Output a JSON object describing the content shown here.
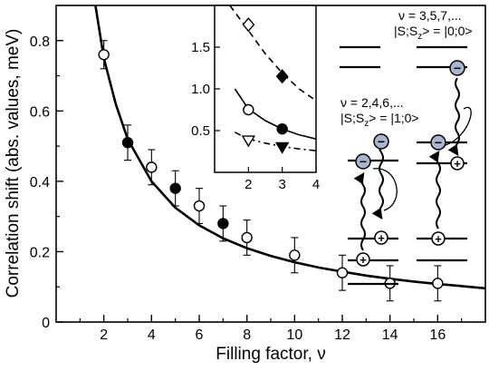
{
  "chart_data": [
    {
      "type": "scatter",
      "xlabel": "Filling factor, ν",
      "ylabel": "Correlation shift (abs. values, meV)",
      "xlim": [
        0,
        18
      ],
      "ylim": [
        0,
        0.9
      ],
      "x_ticks": [
        "2",
        "4",
        "6",
        "8",
        "10",
        "12",
        "14",
        "16"
      ],
      "y_ticks": [
        "0",
        "0.2",
        "0.4",
        "0.6",
        "0.8"
      ],
      "grid": false,
      "series": [
        {
          "marker": "open-circle",
          "points": [
            {
              "x": 2,
              "y": 0.76,
              "err": 0.04
            },
            {
              "x": 4,
              "y": 0.44,
              "err": 0.05
            },
            {
              "x": 6,
              "y": 0.33,
              "err": 0.05
            },
            {
              "x": 8,
              "y": 0.24,
              "err": 0.05
            },
            {
              "x": 10,
              "y": 0.19,
              "err": 0.05
            },
            {
              "x": 12,
              "y": 0.14,
              "err": 0.05
            },
            {
              "x": 14,
              "y": 0.11,
              "err": 0.05
            },
            {
              "x": 16,
              "y": 0.11,
              "err": 0.05
            }
          ]
        },
        {
          "marker": "filled-circle",
          "points": [
            {
              "x": 3,
              "y": 0.51,
              "err": 0.05
            },
            {
              "x": 5,
              "y": 0.38,
              "err": 0.05
            },
            {
              "x": 7,
              "y": 0.28,
              "err": 0.05
            }
          ]
        }
      ],
      "fit_curve": {
        "style": "solid",
        "points": [
          [
            1.65,
            0.9
          ],
          [
            2,
            0.75
          ],
          [
            2.5,
            0.62
          ],
          [
            3,
            0.52
          ],
          [
            4,
            0.4
          ],
          [
            5,
            0.325
          ],
          [
            6,
            0.275
          ],
          [
            7,
            0.238
          ],
          [
            8,
            0.21
          ],
          [
            9,
            0.188
          ],
          [
            10,
            0.17
          ],
          [
            11,
            0.155
          ],
          [
            12,
            0.143
          ],
          [
            13,
            0.132
          ],
          [
            14,
            0.123
          ],
          [
            15,
            0.115
          ],
          [
            16,
            0.108
          ],
          [
            17,
            0.102
          ],
          [
            18,
            0.096
          ]
        ]
      }
    },
    {
      "type": "scatter",
      "inset": true,
      "xlim": [
        1,
        4
      ],
      "ylim": [
        0,
        2
      ],
      "x_ticks": [
        "2",
        "3",
        "4"
      ],
      "y_ticks": [
        "0.5",
        "1.0",
        "1.5"
      ],
      "series": [
        {
          "marker": "open-diamond",
          "points": [
            {
              "x": 2,
              "y": 1.77
            }
          ]
        },
        {
          "marker": "filled-diamond",
          "points": [
            {
              "x": 3,
              "y": 1.15
            }
          ]
        },
        {
          "marker": "open-circle",
          "points": [
            {
              "x": 2,
              "y": 0.75
            }
          ]
        },
        {
          "marker": "filled-circle",
          "points": [
            {
              "x": 3,
              "y": 0.52
            }
          ]
        },
        {
          "marker": "open-triangle-down",
          "points": [
            {
              "x": 2,
              "y": 0.38
            }
          ]
        },
        {
          "marker": "filled-triangle-down",
          "points": [
            {
              "x": 3,
              "y": 0.3
            }
          ]
        }
      ],
      "curves": [
        {
          "style": "dashed",
          "points": [
            [
              1.45,
              2.0
            ],
            [
              2,
              1.7
            ],
            [
              2.5,
              1.42
            ],
            [
              3,
              1.19
            ],
            [
              3.5,
              1.0
            ],
            [
              4,
              0.86
            ]
          ]
        },
        {
          "style": "solid",
          "points": [
            [
              1.6,
              1.0
            ],
            [
              2,
              0.76
            ],
            [
              2.5,
              0.62
            ],
            [
              3,
              0.52
            ],
            [
              3.5,
              0.45
            ],
            [
              4,
              0.4
            ]
          ]
        },
        {
          "style": "dash-dot",
          "points": [
            [
              1.6,
              0.48
            ],
            [
              2,
              0.4
            ],
            [
              2.5,
              0.35
            ],
            [
              3,
              0.31
            ],
            [
              3.5,
              0.28
            ],
            [
              4,
              0.26
            ]
          ]
        }
      ]
    }
  ],
  "diagram": {
    "label_even_nu": "ν = 2,4,6,...",
    "label_even_state": "|S;S",
    "label_even_sub": "z",
    "label_even_rhs": "> = |1;0>",
    "label_odd_nu": "ν = 3,5,7,...",
    "label_odd_state": "|S;S",
    "label_odd_sub": "z",
    "label_odd_rhs": "> = |0;0>",
    "electron_symbol": "−",
    "hole_symbol": "+",
    "colors": {
      "electron_fill": "#aab4cc",
      "line": "#000000",
      "background": "#ffffff"
    }
  }
}
